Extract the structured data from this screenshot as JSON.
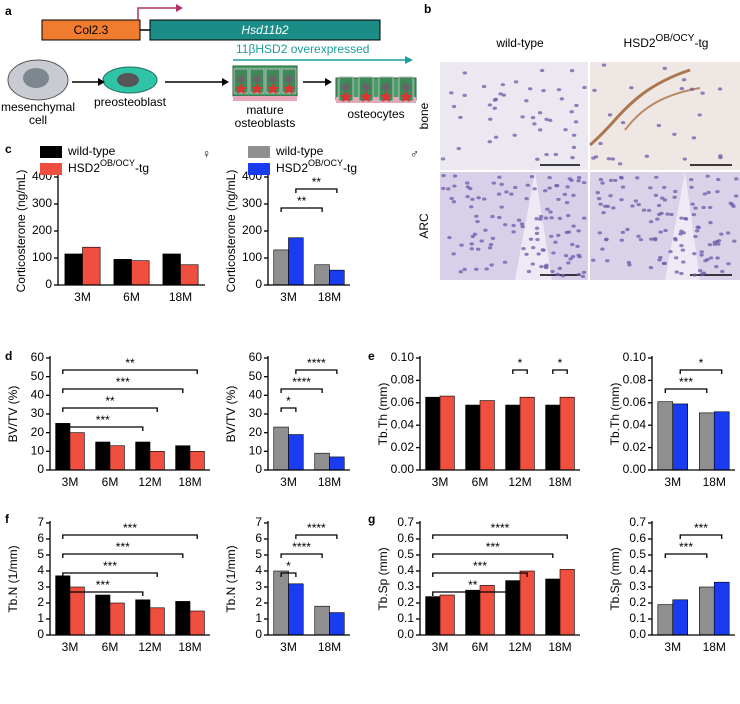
{
  "panel_labels": [
    "a",
    "b",
    "c",
    "d",
    "e",
    "f",
    "g"
  ],
  "diagram": {
    "promoter": "Col2.3",
    "gene": "Hsd11b2",
    "overexpression": "11βHSD2 overexpressed",
    "stages": [
      [
        "mesenchymal",
        "cell"
      ],
      [
        "preosteoblast"
      ],
      [
        "mature",
        "osteoblasts"
      ],
      [
        "osteocytes"
      ]
    ]
  },
  "micrograph": {
    "columns": [
      [
        "wild-type"
      ],
      [
        "HSD2",
        "OB/OCY",
        "-tg"
      ]
    ],
    "rows": [
      "bone",
      "ARC"
    ]
  },
  "chart_data": [
    {
      "type": "bar",
      "y_label": "Corticosterone (ng/mL)",
      "sex_symbol": "♀",
      "categories": [
        "3M",
        "6M",
        "18M"
      ],
      "series": [
        {
          "name": [
            "wild-type"
          ],
          "color": "#000000",
          "values": [
            115,
            95,
            115
          ]
        },
        {
          "name": [
            "HSD2",
            "OB/OCY",
            "-tg"
          ],
          "color": "#f04e3e",
          "values": [
            140,
            90,
            75
          ]
        }
      ],
      "ylim": [
        0,
        400
      ],
      "yticks": [
        0,
        100,
        200,
        300,
        400
      ],
      "annotations": []
    },
    {
      "type": "bar",
      "y_label": "Corticosterone (ng/mL)",
      "sex_symbol": "♂",
      "categories": [
        "3M",
        "18M"
      ],
      "series": [
        {
          "name": [
            "wild-type"
          ],
          "color": "#8f8f8f",
          "values": [
            130,
            75
          ]
        },
        {
          "name": [
            "HSD2",
            "OB/OCY",
            "-tg"
          ],
          "color": "#1a3cf0",
          "values": [
            175,
            55
          ]
        }
      ],
      "ylim": [
        0,
        400
      ],
      "yticks": [
        0,
        100,
        200,
        300,
        400
      ],
      "annotations": [
        "**",
        "**"
      ]
    },
    {
      "type": "bar",
      "y_label": "BV/TV (%)",
      "categories": [
        "3M",
        "6M",
        "12M",
        "18M"
      ],
      "series": [
        {
          "color": "#000000",
          "values": [
            25,
            15,
            15,
            13
          ]
        },
        {
          "color": "#f04e3e",
          "values": [
            20,
            13,
            10,
            10
          ]
        }
      ],
      "ylim": [
        0,
        60
      ],
      "yticks": [
        0,
        10,
        20,
        30,
        40,
        50,
        60
      ],
      "annotations": [
        "**",
        "***",
        "**",
        "***"
      ]
    },
    {
      "type": "bar",
      "y_label": "BV/TV (%)",
      "categories": [
        "3M",
        "18M"
      ],
      "series": [
        {
          "color": "#8f8f8f",
          "values": [
            23,
            9
          ]
        },
        {
          "color": "#1a3cf0",
          "values": [
            19,
            7
          ]
        }
      ],
      "ylim": [
        0,
        60
      ],
      "yticks": [
        0,
        10,
        20,
        30,
        40,
        50,
        60
      ],
      "annotations": [
        "****",
        "****",
        "*"
      ]
    },
    {
      "type": "bar",
      "y_label": "Tb.Th (mm)",
      "categories": [
        "3M",
        "6M",
        "12M",
        "18M"
      ],
      "series": [
        {
          "color": "#000000",
          "values": [
            0.065,
            0.058,
            0.058,
            0.058
          ]
        },
        {
          "color": "#f04e3e",
          "values": [
            0.066,
            0.062,
            0.065,
            0.065
          ]
        }
      ],
      "ylim": [
        0,
        0.1
      ],
      "yticks": [
        {
          "value": 0,
          "label": "0.00"
        },
        {
          "value": 0.02,
          "label": "0.02"
        },
        {
          "value": 0.04,
          "label": "0.04"
        },
        {
          "value": 0.06,
          "label": "0.06"
        },
        {
          "value": 0.08,
          "label": "0.08"
        },
        {
          "value": 0.1,
          "label": "0.10"
        }
      ],
      "annotations": [
        "*",
        "*"
      ]
    },
    {
      "type": "bar",
      "y_label": "Tb.Th (mm)",
      "categories": [
        "3M",
        "18M"
      ],
      "series": [
        {
          "color": "#8f8f8f",
          "values": [
            0.061,
            0.051
          ]
        },
        {
          "color": "#1a3cf0",
          "values": [
            0.059,
            0.052
          ]
        }
      ],
      "ylim": [
        0,
        0.1
      ],
      "yticks": [
        {
          "value": 0,
          "label": "0.00"
        },
        {
          "value": 0.02,
          "label": "0.02"
        },
        {
          "value": 0.04,
          "label": "0.04"
        },
        {
          "value": 0.06,
          "label": "0.06"
        },
        {
          "value": 0.08,
          "label": "0.08"
        },
        {
          "value": 0.1,
          "label": "0.10"
        }
      ],
      "annotations": [
        "*",
        "***"
      ]
    },
    {
      "type": "bar",
      "y_label": "Tb.N (1/mm)",
      "categories": [
        "3M",
        "6M",
        "12M",
        "18M"
      ],
      "series": [
        {
          "color": "#000000",
          "values": [
            3.7,
            2.5,
            2.2,
            2.1
          ]
        },
        {
          "color": "#f04e3e",
          "values": [
            3.0,
            2.0,
            1.7,
            1.5
          ]
        }
      ],
      "ylim": [
        0,
        7
      ],
      "yticks": [
        0,
        1,
        2,
        3,
        4,
        5,
        6,
        7
      ],
      "annotations": [
        "***",
        "***",
        "***",
        "***"
      ]
    },
    {
      "type": "bar",
      "y_label": "Tb.N (1/mm)",
      "categories": [
        "3M",
        "18M"
      ],
      "series": [
        {
          "color": "#8f8f8f",
          "values": [
            4.0,
            1.8
          ]
        },
        {
          "color": "#1a3cf0",
          "values": [
            3.2,
            1.4
          ]
        }
      ],
      "ylim": [
        0,
        7
      ],
      "yticks": [
        0,
        1,
        2,
        3,
        4,
        5,
        6,
        7
      ],
      "annotations": [
        "****",
        "****",
        "*"
      ]
    },
    {
      "type": "bar",
      "y_label": "Tb.Sp (mm)",
      "categories": [
        "3M",
        "6M",
        "12M",
        "18M"
      ],
      "series": [
        {
          "color": "#000000",
          "values": [
            0.24,
            0.28,
            0.34,
            0.35
          ]
        },
        {
          "color": "#f04e3e",
          "values": [
            0.25,
            0.31,
            0.4,
            0.41
          ]
        }
      ],
      "ylim": [
        0,
        0.7
      ],
      "yticks": [
        {
          "value": 0,
          "label": "0.0"
        },
        0.1,
        0.2,
        0.3,
        0.4,
        0.5,
        0.6,
        0.7
      ],
      "annotations": [
        "****",
        "***",
        "***",
        "**"
      ]
    },
    {
      "type": "bar",
      "y_label": "Tb.Sp (mm)",
      "categories": [
        "3M",
        "18M"
      ],
      "series": [
        {
          "color": "#8f8f8f",
          "values": [
            0.19,
            0.3
          ]
        },
        {
          "color": "#1a3cf0",
          "values": [
            0.22,
            0.33
          ]
        }
      ],
      "ylim": [
        0,
        0.7
      ],
      "yticks": [
        {
          "value": 0,
          "label": "0.0"
        },
        0.1,
        0.2,
        0.3,
        0.4,
        0.5,
        0.6,
        0.7
      ],
      "annotations": [
        "***",
        "***"
      ]
    }
  ]
}
